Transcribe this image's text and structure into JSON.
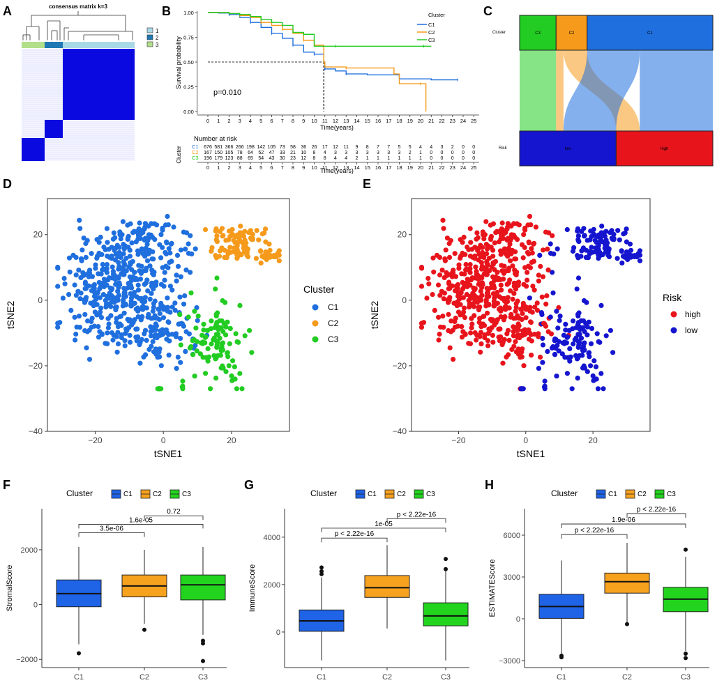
{
  "colors": {
    "c1": "#1f6fde",
    "c2": "#f59a1b",
    "c3": "#22cc22",
    "high": "#e8141c",
    "low": "#1515cf",
    "box_c1": "#1f63e6",
    "box_c2": "#f7a21e",
    "box_c3": "#22d41e",
    "matrix": "#0a0ae0",
    "axis": "#333333"
  },
  "panel_letters": {
    "A": "A",
    "B": "B",
    "C": "C",
    "D": "D",
    "E": "E",
    "F": "F",
    "G": "G",
    "H": "H"
  },
  "panelA": {
    "title": "consensus matrix k=3",
    "legend": [
      "1",
      "2",
      "3"
    ],
    "legend_colors": [
      "#a9d8e6",
      "#1f78b4",
      "#b2df8a"
    ]
  },
  "chart_data": [
    {
      "type": "line",
      "panel": "B",
      "title": "",
      "xlabel": "Time(years)",
      "ylabel": "Survival probability",
      "xlim": [
        -1,
        25.5
      ],
      "ylim": [
        0,
        1.0
      ],
      "x_ticks": [
        0,
        1,
        2,
        3,
        4,
        5,
        6,
        7,
        8,
        9,
        10,
        11,
        12,
        13,
        14,
        15,
        16,
        17,
        18,
        19,
        20,
        21,
        22,
        23,
        24,
        25
      ],
      "y_ticks": [
        "0.00",
        "0.25",
        "0.50",
        "0.75",
        "1.00"
      ],
      "legend_title": "Cluster",
      "pvalue": "p=0.010",
      "median_line": {
        "y": 0.5,
        "x": 10.9
      },
      "series": [
        {
          "name": "C1",
          "points": [
            [
              0,
              1
            ],
            [
              1,
              0.995
            ],
            [
              2,
              0.98
            ],
            [
              3,
              0.95
            ],
            [
              4,
              0.9
            ],
            [
              5,
              0.85
            ],
            [
              6,
              0.79
            ],
            [
              7,
              0.74
            ],
            [
              8,
              0.67
            ],
            [
              9,
              0.6
            ],
            [
              10,
              0.58
            ],
            [
              10.9,
              0.5
            ],
            [
              11,
              0.43
            ],
            [
              12,
              0.41
            ],
            [
              13,
              0.38
            ],
            [
              15,
              0.37
            ],
            [
              18,
              0.33
            ],
            [
              21,
              0.32
            ],
            [
              23.5,
              0.32
            ]
          ]
        },
        {
          "name": "C2",
          "points": [
            [
              0,
              1
            ],
            [
              2,
              0.99
            ],
            [
              3,
              0.97
            ],
            [
              4,
              0.95
            ],
            [
              5,
              0.9
            ],
            [
              6,
              0.87
            ],
            [
              7,
              0.83
            ],
            [
              8,
              0.79
            ],
            [
              9,
              0.72
            ],
            [
              10,
              0.67
            ],
            [
              10.9,
              0.5
            ],
            [
              11,
              0.45
            ],
            [
              13,
              0.44
            ],
            [
              16,
              0.44
            ],
            [
              17.5,
              0.38
            ],
            [
              18,
              0.28
            ],
            [
              20,
              0.28
            ],
            [
              20.5,
              0.0
            ]
          ]
        },
        {
          "name": "C3",
          "points": [
            [
              0,
              1
            ],
            [
              2,
              0.99
            ],
            [
              3,
              0.98
            ],
            [
              4,
              0.96
            ],
            [
              5,
              0.93
            ],
            [
              6,
              0.9
            ],
            [
              7,
              0.87
            ],
            [
              8,
              0.8
            ],
            [
              9,
              0.78
            ],
            [
              10,
              0.66
            ],
            [
              12,
              0.66
            ],
            [
              20,
              0.66
            ],
            [
              20.3,
              0.66
            ],
            [
              21,
              0.66
            ]
          ]
        }
      ],
      "risk_table": {
        "title": "Number at risk",
        "axis_label": "Cluster",
        "xlabel": "Time(years)",
        "rows": [
          {
            "name": "C1",
            "values": [
              "676",
              "581",
              "366",
              "266",
              "198",
              "142",
              "105",
              "73",
              "58",
              "36",
              "26",
              "17",
              "12",
              "11",
              "9",
              "8",
              "7",
              "7",
              "5",
              "5",
              "4",
              "4",
              "3",
              "2",
              "0",
              "0"
            ]
          },
          {
            "name": "C2",
            "values": [
              "167",
              "150",
              "105",
              "78",
              "64",
              "52",
              "47",
              "33",
              "21",
              "10",
              "8",
              "4",
              "3",
              "3",
              "3",
              "3",
              "3",
              "3",
              "3",
              "2",
              "1",
              "0",
              "0",
              "0",
              "0",
              "0"
            ]
          },
          {
            "name": "C3",
            "values": [
              "196",
              "179",
              "123",
              "88",
              "65",
              "54",
              "43",
              "30",
              "23",
              "12",
              "8",
              "8",
              "4",
              "4",
              "2",
              "1",
              "1",
              "1",
              "1",
              "1",
              "1",
              "0",
              "0",
              "0",
              "0",
              "0"
            ]
          }
        ]
      }
    },
    {
      "type": "sankey",
      "panel": "C",
      "axis_labels": [
        "Cluster",
        "Risk"
      ],
      "top_nodes": [
        {
          "name": "C3",
          "value": 196
        },
        {
          "name": "C2",
          "value": 167
        },
        {
          "name": "C1",
          "value": 676
        }
      ],
      "bottom_nodes": [
        {
          "name": "low",
          "value": 519
        },
        {
          "name": "high",
          "value": 520
        }
      ],
      "flows": [
        {
          "from": "C3",
          "to": "low",
          "value": 196
        },
        {
          "from": "C2",
          "to": "low",
          "value": 40
        },
        {
          "from": "C2",
          "to": "high",
          "value": 127
        },
        {
          "from": "C1",
          "to": "low",
          "value": 283
        },
        {
          "from": "C1",
          "to": "high",
          "value": 393
        }
      ]
    },
    {
      "type": "scatter",
      "panel": "D",
      "xlabel": "tSNE1",
      "ylabel": "tSNE2",
      "xlim": [
        -34,
        37
      ],
      "ylim": [
        -40,
        31
      ],
      "x_ticks": [
        -20,
        0,
        20
      ],
      "y_ticks": [
        20,
        0,
        -20,
        -40
      ],
      "legend_title": "Cluster",
      "series": [
        "C1",
        "C2",
        "C3"
      ]
    },
    {
      "type": "scatter",
      "panel": "E",
      "xlabel": "tSNE1",
      "ylabel": "tSNE2",
      "xlim": [
        -34,
        37
      ],
      "ylim": [
        -40,
        31
      ],
      "x_ticks": [
        -20,
        0,
        20
      ],
      "y_ticks": [
        20,
        0,
        -20,
        -40
      ],
      "legend_title": "Risk",
      "series": [
        "high",
        "low"
      ]
    },
    {
      "type": "box",
      "panel": "F",
      "ylabel": "StromalScore",
      "categories": [
        "C1",
        "C2",
        "C3"
      ],
      "legend_title": "Cluster",
      "ylim": [
        -2300,
        3500
      ],
      "y_ticks": [
        2000,
        0,
        -2000
      ],
      "boxes": [
        {
          "name": "C1",
          "min": -1450,
          "q1": -80,
          "median": 400,
          "q3": 900,
          "max": 2100,
          "outliers": [
            -1780
          ]
        },
        {
          "name": "C2",
          "min": -700,
          "q1": 280,
          "median": 680,
          "q3": 1080,
          "max": 2000,
          "outliers": [
            -920
          ]
        },
        {
          "name": "C3",
          "min": -1100,
          "q1": 170,
          "median": 720,
          "q3": 1080,
          "max": 2100,
          "outliers": [
            -1320,
            -1420,
            -2060
          ]
        }
      ],
      "comparisons": [
        {
          "from": "C1",
          "to": "C2",
          "label": "3.5e-06",
          "y": 2620
        },
        {
          "from": "C1",
          "to": "C3",
          "label": "1.6e-05",
          "y": 2930
        },
        {
          "from": "C2",
          "to": "C3",
          "label": "0.72",
          "y": 3240
        }
      ]
    },
    {
      "type": "box",
      "panel": "G",
      "ylabel": "ImmuneScore",
      "categories": [
        "C1",
        "C2",
        "C3"
      ],
      "legend_title": "Cluster",
      "ylim": [
        -1500,
        5200
      ],
      "y_ticks": [
        4000,
        2000,
        0
      ],
      "boxes": [
        {
          "name": "C1",
          "min": -1200,
          "q1": 30,
          "median": 470,
          "q3": 930,
          "max": 2300,
          "outliers": [
            2440,
            2560,
            2720
          ]
        },
        {
          "name": "C2",
          "min": 150,
          "q1": 1460,
          "median": 1870,
          "q3": 2380,
          "max": 3660,
          "outliers": []
        },
        {
          "name": "C3",
          "min": -1200,
          "q1": 260,
          "median": 680,
          "q3": 1230,
          "max": 2600,
          "outliers": [
            3080,
            2650
          ]
        }
      ],
      "comparisons": [
        {
          "from": "C1",
          "to": "C2",
          "label": "p < 2.22e-16",
          "y": 3960
        },
        {
          "from": "C1",
          "to": "C3",
          "label": "1e-05",
          "y": 4380
        },
        {
          "from": "C2",
          "to": "C3",
          "label": "p < 2.22e-16",
          "y": 4780
        }
      ]
    },
    {
      "type": "box",
      "panel": "H",
      "ylabel": "ESTIMATEScore",
      "categories": [
        "C1",
        "C2",
        "C3"
      ],
      "legend_title": "Cluster",
      "ylim": [
        -3500,
        7900
      ],
      "y_ticks": [
        6000,
        3000,
        0,
        -3000
      ],
      "boxes": [
        {
          "name": "C1",
          "min": -2500,
          "q1": 30,
          "median": 880,
          "q3": 1760,
          "max": 4180,
          "outliers": [
            -2650,
            -2760
          ]
        },
        {
          "name": "C2",
          "min": -300,
          "q1": 1840,
          "median": 2660,
          "q3": 3280,
          "max": 5450,
          "outliers": [
            -380
          ]
        },
        {
          "name": "C3",
          "min": -2300,
          "q1": 510,
          "median": 1410,
          "q3": 2260,
          "max": 4450,
          "outliers": [
            4960,
            -2500,
            -2820
          ]
        }
      ],
      "comparisons": [
        {
          "from": "C1",
          "to": "C2",
          "label": "p < 2.22e-16",
          "y": 6050
        },
        {
          "from": "C1",
          "to": "C3",
          "label": "1.9e-06",
          "y": 6800
        },
        {
          "from": "C2",
          "to": "C3",
          "label": "p < 2.22e-16",
          "y": 7550
        }
      ]
    }
  ]
}
